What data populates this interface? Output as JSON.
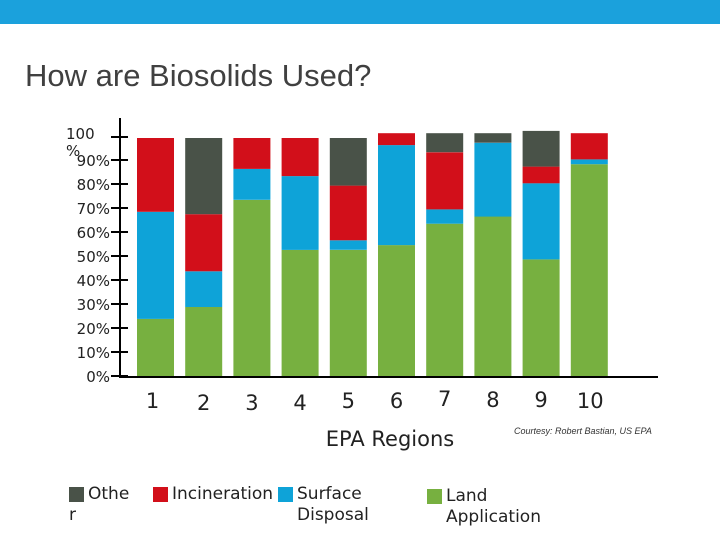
{
  "page": {
    "title": "How are Biosolids Used?",
    "credit": "Courtesy: Robert Bastian, US EPA"
  },
  "chart_data": {
    "type": "bar",
    "stacked": true,
    "xlabel": "EPA Regions",
    "ylabel": "",
    "ylim": [
      0,
      100
    ],
    "ytick_labels": [
      "100 %",
      "90%",
      "80%",
      "70%",
      "60%",
      "50%",
      "40%",
      "30%",
      "20%",
      "10%",
      "0%"
    ],
    "categories": [
      "1",
      "2",
      "3",
      "4",
      "5",
      "6",
      "7",
      "8",
      "9",
      "10"
    ],
    "series": [
      {
        "name": "Land Application",
        "color": "#77b040",
        "values": [
          24,
          29,
          74,
          53,
          53,
          55,
          64,
          67,
          49,
          89
        ]
      },
      {
        "name": "Surface Disposal",
        "color": "#0ea3d8",
        "values": [
          45,
          15,
          13,
          31,
          4,
          42,
          6,
          31,
          32,
          2
        ]
      },
      {
        "name": "Incineration",
        "color": "#d20f1a",
        "values": [
          31,
          24,
          13,
          16,
          23,
          5,
          24,
          0,
          7,
          11
        ]
      },
      {
        "name": "Other",
        "color": "#495248",
        "values": [
          0,
          32,
          0,
          0,
          20,
          0,
          8,
          4,
          15,
          0
        ]
      }
    ],
    "legend": {
      "position": "bottom",
      "entries": [
        {
          "label_lines": [
            "Othe",
            "r"
          ],
          "color": "#495248"
        },
        {
          "label_lines": [
            "Incineration"
          ],
          "color": "#d20f1a"
        },
        {
          "label_lines": [
            "Surface",
            "Disposal"
          ],
          "color": "#0ea3d8"
        },
        {
          "label_lines": [
            "Land",
            "Application"
          ],
          "color": "#77b040"
        }
      ]
    }
  }
}
